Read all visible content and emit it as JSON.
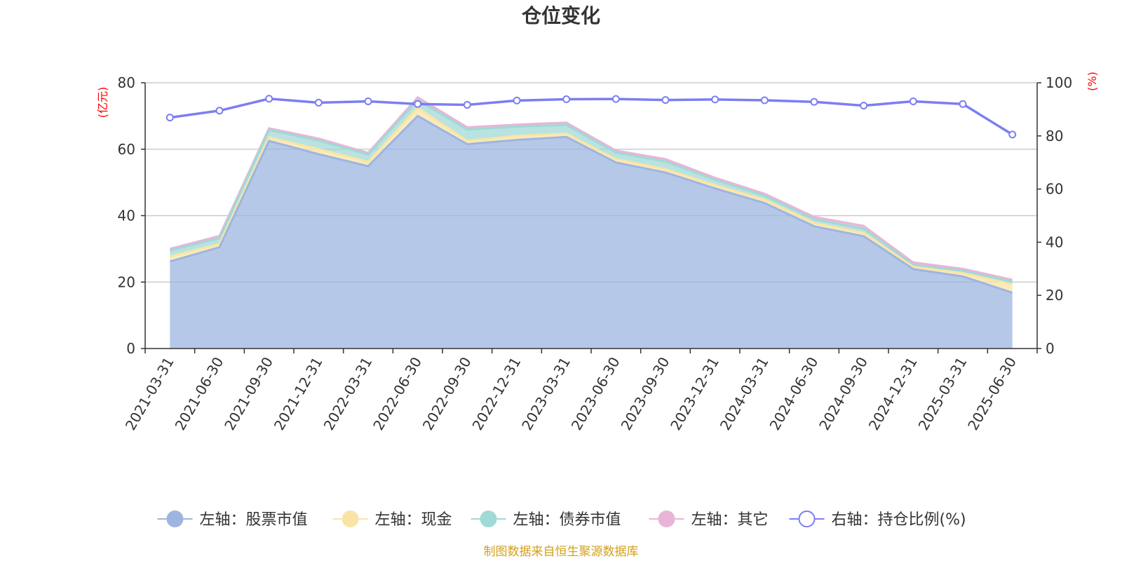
{
  "chart_data": {
    "type": "area",
    "title": "仓位变化",
    "source_note": "制图数据来自恒生聚源数据库",
    "left_axis": {
      "unit": "(亿元)",
      "ylim": [
        0,
        80
      ],
      "ticks": [
        0,
        20,
        40,
        60,
        80
      ]
    },
    "right_axis": {
      "unit": "(%)",
      "ylim": [
        0,
        100
      ],
      "ticks": [
        0,
        20,
        40,
        60,
        80,
        100
      ]
    },
    "grid": true,
    "legend_position": "bottom",
    "categories": [
      "2021-03-31",
      "2021-06-30",
      "2021-09-30",
      "2021-12-31",
      "2022-03-31",
      "2022-06-30",
      "2022-09-30",
      "2022-12-31",
      "2023-03-31",
      "2023-06-30",
      "2023-09-30",
      "2023-12-31",
      "2024-03-31",
      "2024-06-30",
      "2024-09-30",
      "2024-12-31",
      "2025-03-31",
      "2025-06-30"
    ],
    "series": [
      {
        "name": "左轴：股票市值",
        "axis": "left",
        "type": "stacked-area",
        "color": "#9db5e0",
        "values": [
          26.2,
          30.5,
          62.5,
          58.5,
          54.9,
          70.0,
          61.5,
          62.8,
          63.7,
          56.0,
          53.0,
          48.2,
          43.8,
          36.8,
          33.8,
          23.9,
          21.7,
          16.8
        ]
      },
      {
        "name": "左轴：现金",
        "axis": "left",
        "type": "stacked-area",
        "color": "#fae4a5",
        "values": [
          1.5,
          1.0,
          1.1,
          1.5,
          1.3,
          2.5,
          1.0,
          1.2,
          1.0,
          1.0,
          1.0,
          1.0,
          1.0,
          1.0,
          1.0,
          0.7,
          1.0,
          2.5
        ]
      },
      {
        "name": "左轴：债券市值",
        "axis": "left",
        "type": "stacked-area",
        "color": "#a0d9d6",
        "values": [
          1.8,
          1.7,
          2.2,
          2.6,
          2.2,
          2.3,
          3.4,
          2.8,
          2.6,
          2.0,
          2.3,
          1.6,
          1.2,
          1.1,
          1.3,
          0.6,
          0.7,
          0.8
        ]
      },
      {
        "name": "左轴：其它",
        "axis": "left",
        "type": "stacked-area",
        "color": "#e8b5d8",
        "values": [
          0.5,
          0.7,
          0.5,
          0.6,
          0.5,
          0.8,
          0.7,
          0.6,
          0.7,
          0.6,
          0.7,
          0.6,
          0.6,
          0.7,
          0.8,
          0.7,
          0.6,
          0.6
        ]
      },
      {
        "name": "右轴：持仓比例(%)",
        "axis": "right",
        "type": "line",
        "color": "#7b7ef2",
        "values": [
          86.9,
          89.5,
          94.0,
          92.5,
          93.0,
          92.0,
          91.7,
          93.3,
          93.8,
          93.9,
          93.5,
          93.7,
          93.4,
          92.8,
          91.4,
          93.0,
          92.0,
          80.5
        ]
      }
    ]
  }
}
